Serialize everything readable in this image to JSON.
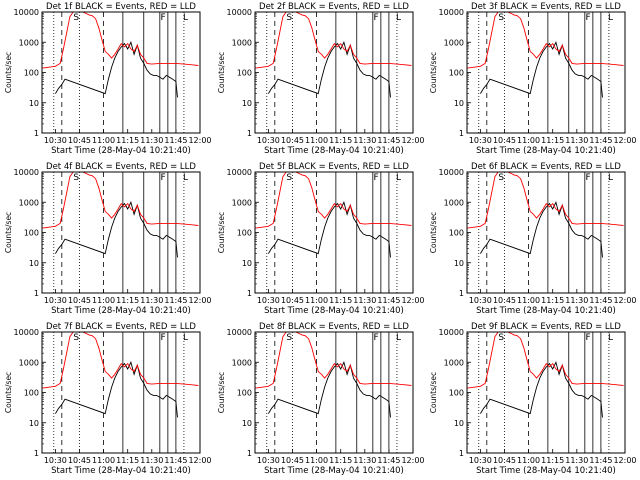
{
  "figure": {
    "panels": [
      {
        "title": "Det 1f BLACK = Events, RED = LLD",
        "flag_left": "S",
        "flag_right": "F",
        "flag_extra": "L"
      },
      {
        "title": "Det 2f BLACK = Events, RED = LLD",
        "flag_left": "S",
        "flag_right": "F",
        "flag_extra": "L"
      },
      {
        "title": "Det 3f BLACK = Events, RED = LLD",
        "flag_left": "S",
        "flag_right": "F",
        "flag_extra": "L"
      },
      {
        "title": "Det 4f BLACK = Events, RED = LLD",
        "flag_left": "S",
        "flag_right": "F",
        "flag_extra": "L"
      },
      {
        "title": "Det 5f BLACK = Events, RED = LLD",
        "flag_left": "S",
        "flag_right": "F",
        "flag_extra": "L"
      },
      {
        "title": "Det 6f BLACK = Events, RED = LLD",
        "flag_left": "S",
        "flag_right": "F",
        "flag_extra": "L"
      },
      {
        "title": "Det 7f BLACK = Events, RED = LLD",
        "flag_left": "S",
        "flag_right": "F",
        "flag_extra": "L"
      },
      {
        "title": "Det 8f BLACK = Events, RED = LLD",
        "flag_left": "S",
        "flag_right": "F",
        "flag_extra": "L"
      },
      {
        "title": "Det 9f BLACK = Events, RED = LLD",
        "flag_left": "S",
        "flag_right": "F",
        "flag_extra": "L"
      }
    ],
    "ylabel": "Counts/sec",
    "xlabel": "Start Time (28-May-04 10:21:40)"
  },
  "chart_data": {
    "type": "line",
    "layout": "3x3 grid of identical line charts",
    "xlabel": "Start Time (28-May-04 10:21:40)",
    "ylabel": "Counts/sec",
    "xlim": [
      "10:21:40",
      "12:00"
    ],
    "x_ticks": [
      "10:30",
      "10:45",
      "11:00",
      "11:15",
      "11:30",
      "11:45",
      "12:00"
    ],
    "ylim": [
      1,
      10000
    ],
    "y_scale": "log",
    "y_ticks": [
      "1",
      "10",
      "100",
      "1000",
      "10000"
    ],
    "grid": false,
    "colors": {
      "events": "#000000",
      "lld": "#ff0000"
    },
    "vertical_markers": {
      "dotted": [
        "10:29",
        "10:45",
        "11:50"
      ],
      "dashed": [
        "10:34",
        "11:00"
      ],
      "solid": [
        "11:12",
        "11:25",
        "11:35",
        "11:40",
        "11:45"
      ]
    },
    "series": [
      {
        "label": "Events (black)",
        "x": [
          "10:30",
          "10:32",
          "10:34",
          "10:36",
          "11:01",
          "11:03",
          "11:05",
          "11:07",
          "11:09",
          "11:11",
          "11:13",
          "11:15",
          "11:17",
          "11:19",
          "11:21",
          "11:23",
          "11:25",
          "11:27",
          "11:29",
          "11:31",
          "11:33",
          "11:35",
          "11:37",
          "11:39",
          "11:41",
          "11:43",
          "11:45",
          "11:46"
        ],
        "y": [
          20,
          30,
          40,
          60,
          20,
          60,
          150,
          300,
          500,
          700,
          900,
          600,
          1000,
          400,
          800,
          300,
          200,
          120,
          90,
          80,
          80,
          70,
          60,
          80,
          70,
          60,
          50,
          15
        ]
      },
      {
        "label": "LLD (red)",
        "x": [
          "10:22",
          "10:26",
          "10:30",
          "10:33",
          "10:35",
          "10:37",
          "10:39",
          "10:41",
          "10:43",
          "10:45",
          "10:47",
          "10:49",
          "10:51",
          "10:53",
          "10:55",
          "10:57",
          "10:59",
          "11:01",
          "11:03",
          "11:05",
          "11:07",
          "11:09",
          "11:11",
          "11:13",
          "11:15",
          "11:17",
          "11:19",
          "11:21",
          "11:23",
          "11:25",
          "11:27",
          "11:30",
          "11:35",
          "11:40",
          "11:45",
          "11:50",
          "11:55",
          "11:59"
        ],
        "y": [
          140,
          150,
          160,
          200,
          600,
          2000,
          7000,
          10000,
          10000,
          10000,
          10000,
          9000,
          8000,
          7500,
          6000,
          3000,
          1200,
          500,
          400,
          300,
          400,
          600,
          900,
          700,
          900,
          600,
          500,
          800,
          400,
          300,
          200,
          190,
          200,
          200,
          200,
          190,
          180,
          170
        ]
      }
    ]
  }
}
